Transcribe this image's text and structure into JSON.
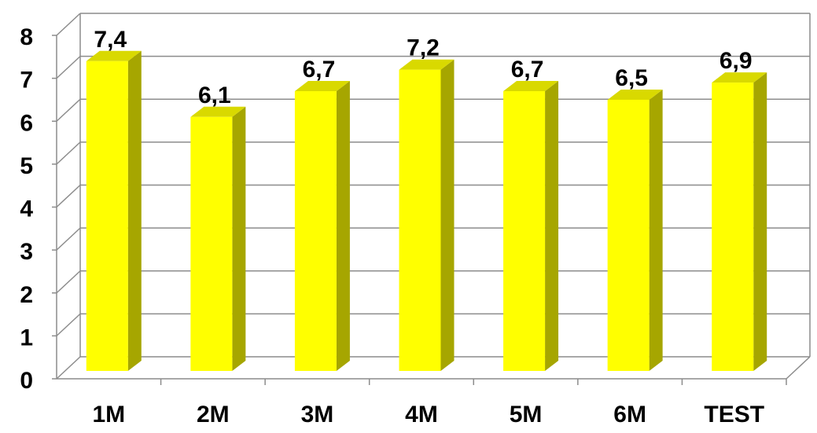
{
  "chart_data": {
    "type": "bar",
    "categories": [
      "1M",
      "2M",
      "3M",
      "4M",
      "5M",
      "6M",
      "TEST"
    ],
    "values": [
      7.4,
      6.1,
      6.7,
      7.2,
      6.7,
      6.5,
      6.9
    ],
    "value_labels": [
      "7,4",
      "6,1",
      "6,7",
      "7,2",
      "6,7",
      "6,5",
      "6,9"
    ],
    "title": "",
    "xlabel": "",
    "ylabel": "",
    "ylim": [
      0,
      8
    ],
    "yticks": [
      0,
      1,
      2,
      3,
      4,
      5,
      6,
      7,
      8
    ],
    "grid": true,
    "three_d": true,
    "colors": {
      "bar_front": "#ffff00",
      "bar_side": "#a6a600",
      "bar_top": "#d9d900",
      "grid": "#8c8c8c",
      "background": "#ffffff"
    }
  }
}
